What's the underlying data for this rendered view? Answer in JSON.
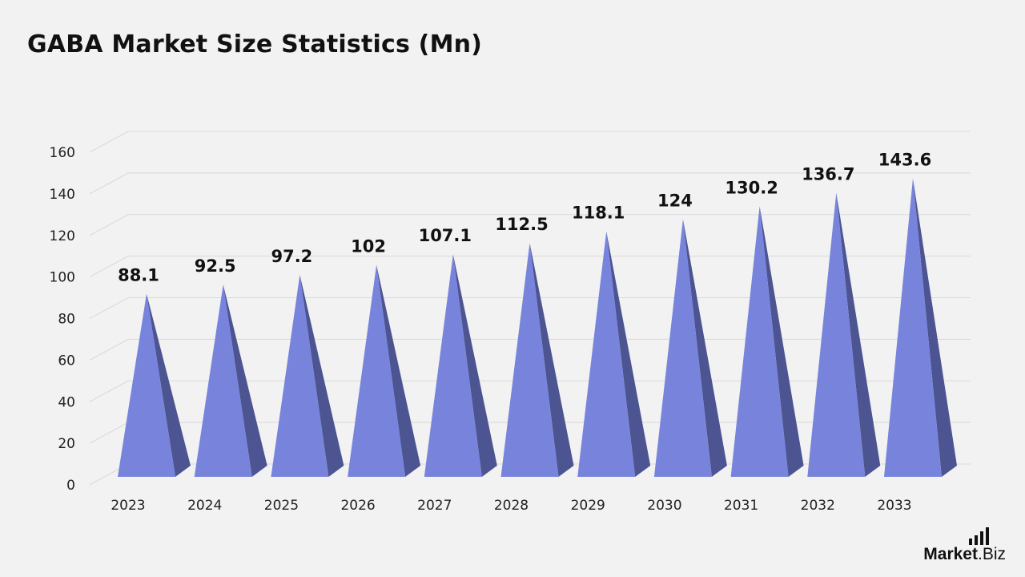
{
  "title": "GABA Market Size Statistics (Mn)",
  "brand": {
    "name": "Market",
    "suffix": ".Biz"
  },
  "colors": {
    "background": "#f2f2f2",
    "bar_front": "#7884dc",
    "bar_side": "#4c5491",
    "grid": "#d9d9d9",
    "text": "#111111"
  },
  "chart_data": {
    "type": "bar",
    "shape": "pyramid",
    "categories": [
      "2023",
      "2024",
      "2025",
      "2026",
      "2027",
      "2028",
      "2029",
      "2030",
      "2031",
      "2032",
      "2033"
    ],
    "values": [
      88.1,
      92.5,
      97.2,
      102,
      107.1,
      112.5,
      118.1,
      124,
      130.2,
      136.7,
      143.6
    ],
    "value_labels": [
      "88.1",
      "92.5",
      "97.2",
      "102",
      "107.1",
      "112.5",
      "118.1",
      "124",
      "130.2",
      "136.7",
      "143.6"
    ],
    "yticks": [
      0,
      20,
      40,
      60,
      80,
      100,
      120,
      140,
      160
    ],
    "ylim": [
      0,
      160
    ],
    "grid": true,
    "legend": "none",
    "xlabel": "",
    "ylabel": ""
  }
}
